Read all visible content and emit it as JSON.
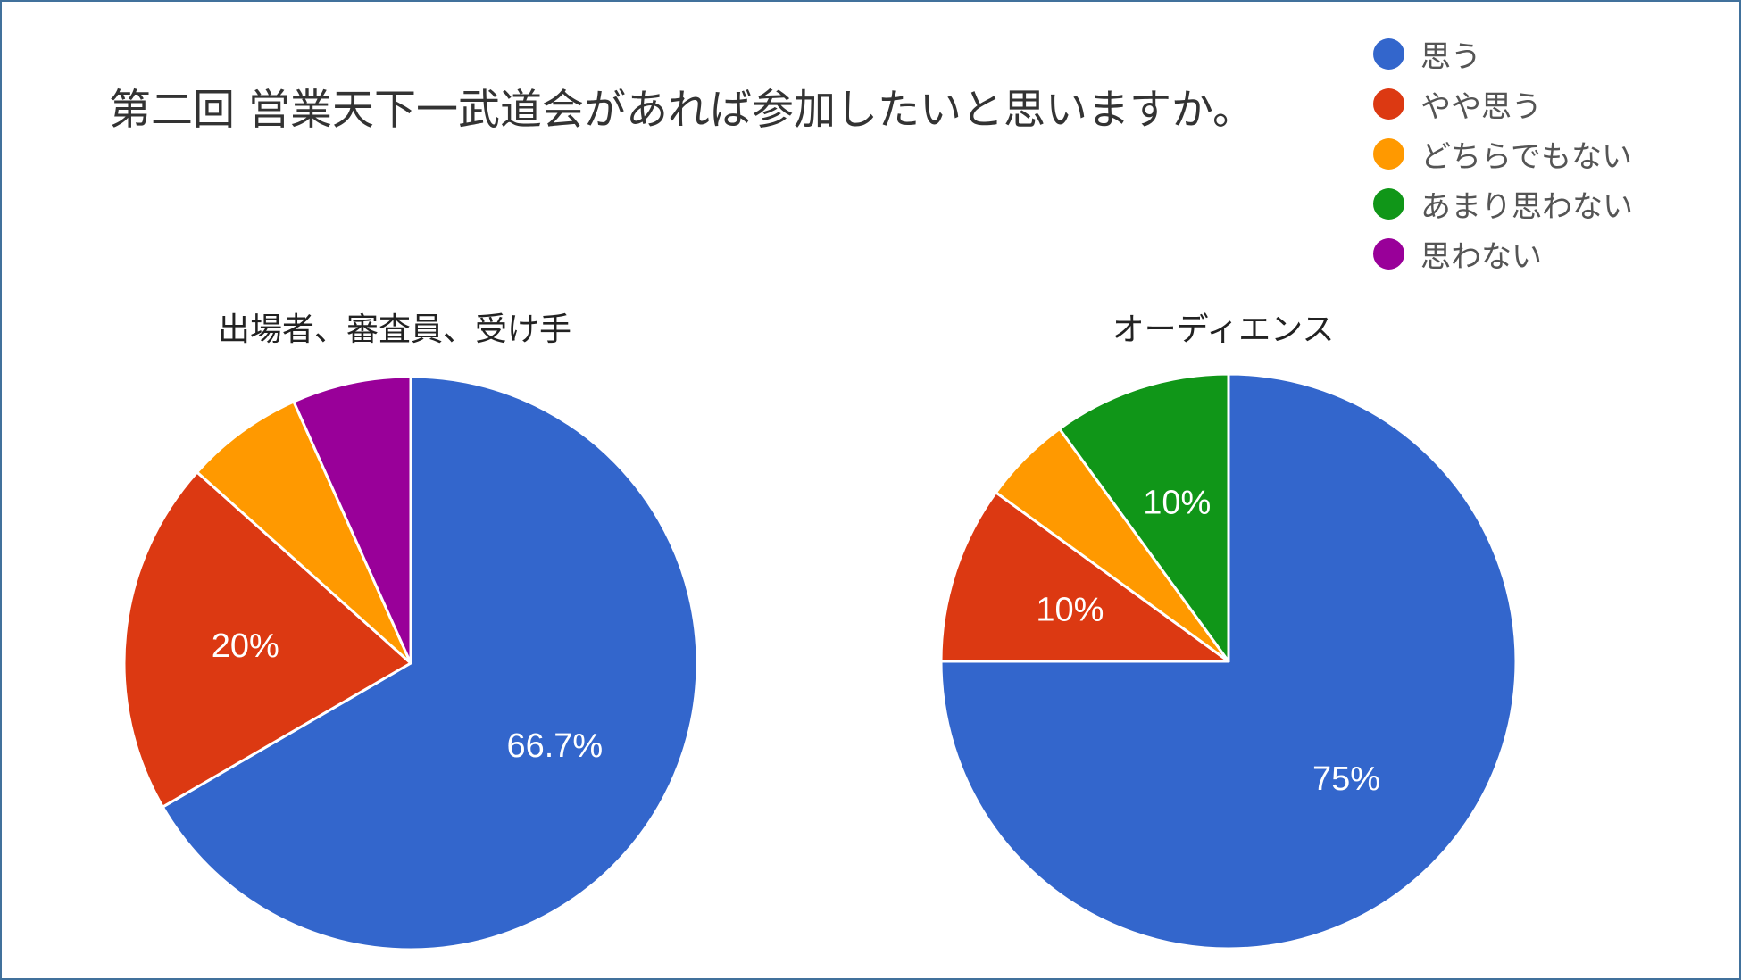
{
  "title": "第二回 営業天下一武道会があれば参加したいと思いますか。",
  "legend": [
    {
      "label": "思う",
      "color": "#3366cc"
    },
    {
      "label": "やや思う",
      "color": "#dc3912"
    },
    {
      "label": "どちらでもない",
      "color": "#ff9900"
    },
    {
      "label": "あまり思わない",
      "color": "#109618"
    },
    {
      "label": "思わない",
      "color": "#990099"
    }
  ],
  "chart_data": [
    {
      "type": "pie",
      "title": "出場者、審査員、受け手",
      "labels": [
        "思う",
        "やや思う",
        "どちらでもない",
        "あまり思わない",
        "思わない"
      ],
      "values": [
        66.7,
        20,
        6.7,
        0,
        6.7
      ],
      "data_labels": [
        "66.7%",
        "20%",
        "",
        "",
        ""
      ],
      "colors": [
        "#3366cc",
        "#dc3912",
        "#ff9900",
        "#109618",
        "#990099"
      ]
    },
    {
      "type": "pie",
      "title": "オーディエンス",
      "labels": [
        "思う",
        "やや思う",
        "どちらでもない",
        "あまり思わない",
        "思わない"
      ],
      "values": [
        75,
        10,
        5,
        10,
        0
      ],
      "data_labels": [
        "75%",
        "10%",
        "",
        "10%",
        ""
      ],
      "colors": [
        "#3366cc",
        "#dc3912",
        "#ff9900",
        "#109618",
        "#990099"
      ]
    }
  ]
}
